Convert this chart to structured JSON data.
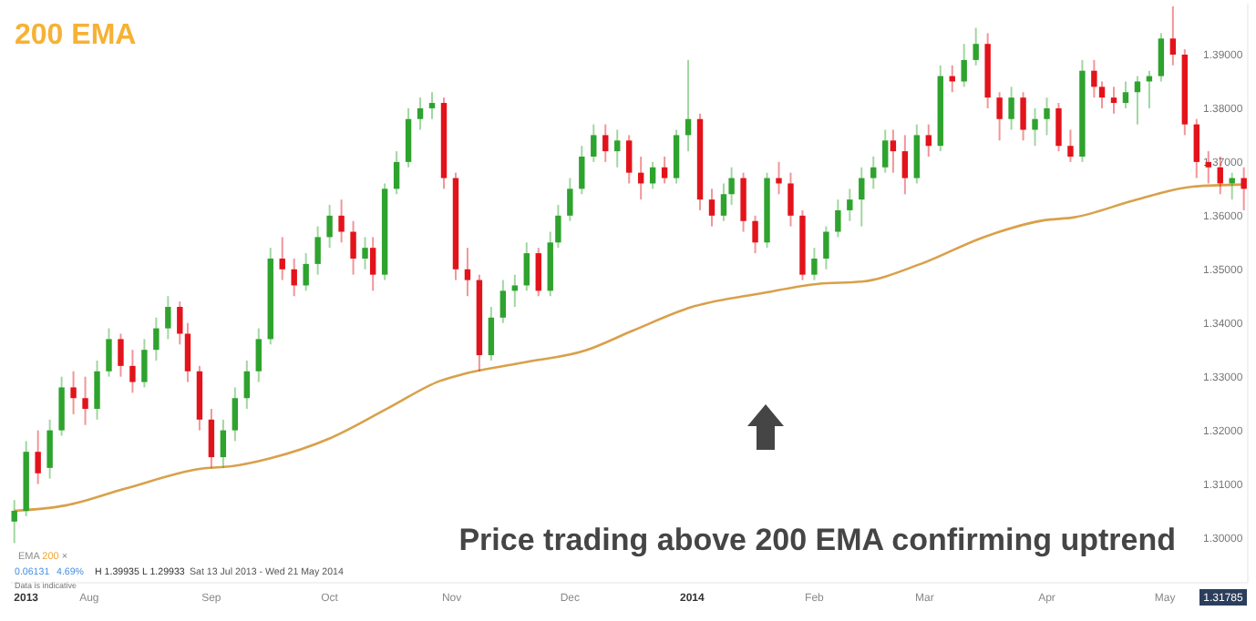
{
  "chart_data": {
    "type": "candlestick",
    "title": "200 EMA",
    "x": [
      "2013-07-13",
      "2013-07-16",
      "2013-07-19",
      "2013-07-22",
      "2013-07-25",
      "2013-07-28",
      "2013-07-31",
      "2013-08-03",
      "2013-08-06",
      "2013-08-09",
      "2013-08-12",
      "2013-08-15",
      "2013-08-18",
      "2013-08-21",
      "2013-08-24",
      "2013-08-26",
      "2013-08-29",
      "2013-09-01",
      "2013-09-04",
      "2013-09-07",
      "2013-09-10",
      "2013-09-13",
      "2013-09-16",
      "2013-09-19",
      "2013-09-22",
      "2013-09-25",
      "2013-09-28",
      "2013-10-01",
      "2013-10-04",
      "2013-10-07",
      "2013-10-10",
      "2013-10-12",
      "2013-10-15",
      "2013-10-18",
      "2013-10-21",
      "2013-10-24",
      "2013-10-27",
      "2013-10-30",
      "2013-11-02",
      "2013-11-05",
      "2013-11-08",
      "2013-11-11",
      "2013-11-14",
      "2013-11-17",
      "2013-11-20",
      "2013-11-23",
      "2013-11-26",
      "2013-11-28",
      "2013-12-01",
      "2013-12-04",
      "2013-12-07",
      "2013-12-10",
      "2013-12-13",
      "2013-12-16",
      "2013-12-19",
      "2013-12-22",
      "2013-12-25",
      "2013-12-28",
      "2013-12-31",
      "2014-01-03",
      "2014-01-06",
      "2014-01-09",
      "2014-01-11",
      "2014-01-14",
      "2014-01-17",
      "2014-01-20",
      "2014-01-23",
      "2014-01-26",
      "2014-01-29",
      "2014-02-01",
      "2014-02-04",
      "2014-02-07",
      "2014-02-10",
      "2014-02-13",
      "2014-02-16",
      "2014-02-19",
      "2014-02-21",
      "2014-02-24",
      "2014-02-27",
      "2014-03-02",
      "2014-03-05",
      "2014-03-08",
      "2014-03-11",
      "2014-03-14",
      "2014-03-17",
      "2014-03-20",
      "2014-03-23",
      "2014-03-26",
      "2014-03-29",
      "2014-04-01",
      "2014-04-04",
      "2014-04-07",
      "2014-04-10",
      "2014-04-13",
      "2014-04-15",
      "2014-04-18",
      "2014-04-21",
      "2014-04-24",
      "2014-04-27",
      "2014-04-30",
      "2014-05-03",
      "2014-05-06",
      "2014-05-09",
      "2014-05-12",
      "2014-05-15",
      "2014-05-18",
      "2014-05-21"
    ],
    "ohlc": [
      [
        1.303,
        1.307,
        1.299,
        1.305
      ],
      [
        1.305,
        1.318,
        1.304,
        1.316
      ],
      [
        1.316,
        1.32,
        1.31,
        1.312
      ],
      [
        1.313,
        1.322,
        1.311,
        1.32
      ],
      [
        1.32,
        1.33,
        1.319,
        1.328
      ],
      [
        1.328,
        1.331,
        1.323,
        1.326
      ],
      [
        1.326,
        1.33,
        1.321,
        1.324
      ],
      [
        1.324,
        1.333,
        1.322,
        1.331
      ],
      [
        1.331,
        1.339,
        1.33,
        1.337
      ],
      [
        1.337,
        1.338,
        1.33,
        1.332
      ],
      [
        1.332,
        1.335,
        1.327,
        1.329
      ],
      [
        1.329,
        1.337,
        1.328,
        1.335
      ],
      [
        1.335,
        1.341,
        1.333,
        1.339
      ],
      [
        1.339,
        1.345,
        1.337,
        1.343
      ],
      [
        1.343,
        1.344,
        1.336,
        1.338
      ],
      [
        1.338,
        1.34,
        1.329,
        1.331
      ],
      [
        1.331,
        1.332,
        1.32,
        1.322
      ],
      [
        1.322,
        1.324,
        1.313,
        1.315
      ],
      [
        1.315,
        1.322,
        1.313,
        1.32
      ],
      [
        1.32,
        1.328,
        1.318,
        1.326
      ],
      [
        1.326,
        1.333,
        1.324,
        1.331
      ],
      [
        1.331,
        1.339,
        1.329,
        1.337
      ],
      [
        1.337,
        1.354,
        1.336,
        1.352
      ],
      [
        1.352,
        1.356,
        1.348,
        1.35
      ],
      [
        1.35,
        1.352,
        1.345,
        1.347
      ],
      [
        1.347,
        1.353,
        1.346,
        1.351
      ],
      [
        1.351,
        1.358,
        1.349,
        1.356
      ],
      [
        1.356,
        1.362,
        1.354,
        1.36
      ],
      [
        1.36,
        1.363,
        1.355,
        1.357
      ],
      [
        1.357,
        1.359,
        1.349,
        1.352
      ],
      [
        1.352,
        1.356,
        1.35,
        1.354
      ],
      [
        1.354,
        1.356,
        1.346,
        1.349
      ],
      [
        1.349,
        1.366,
        1.348,
        1.365
      ],
      [
        1.365,
        1.372,
        1.364,
        1.37
      ],
      [
        1.37,
        1.38,
        1.369,
        1.378
      ],
      [
        1.378,
        1.382,
        1.376,
        1.38
      ],
      [
        1.38,
        1.383,
        1.378,
        1.381
      ],
      [
        1.381,
        1.382,
        1.365,
        1.367
      ],
      [
        1.367,
        1.368,
        1.348,
        1.35
      ],
      [
        1.35,
        1.354,
        1.345,
        1.348
      ],
      [
        1.348,
        1.349,
        1.331,
        1.334
      ],
      [
        1.334,
        1.343,
        1.333,
        1.341
      ],
      [
        1.341,
        1.348,
        1.34,
        1.346
      ],
      [
        1.346,
        1.349,
        1.343,
        1.347
      ],
      [
        1.347,
        1.355,
        1.346,
        1.353
      ],
      [
        1.353,
        1.354,
        1.345,
        1.346
      ],
      [
        1.346,
        1.357,
        1.345,
        1.355
      ],
      [
        1.355,
        1.362,
        1.354,
        1.36
      ],
      [
        1.36,
        1.367,
        1.359,
        1.365
      ],
      [
        1.365,
        1.373,
        1.364,
        1.371
      ],
      [
        1.371,
        1.377,
        1.37,
        1.375
      ],
      [
        1.375,
        1.377,
        1.37,
        1.372
      ],
      [
        1.372,
        1.376,
        1.369,
        1.374
      ],
      [
        1.374,
        1.375,
        1.366,
        1.368
      ],
      [
        1.368,
        1.371,
        1.363,
        1.366
      ],
      [
        1.366,
        1.37,
        1.365,
        1.369
      ],
      [
        1.369,
        1.371,
        1.366,
        1.367
      ],
      [
        1.367,
        1.376,
        1.366,
        1.375
      ],
      [
        1.375,
        1.389,
        1.372,
        1.378
      ],
      [
        1.378,
        1.379,
        1.361,
        1.363
      ],
      [
        1.363,
        1.365,
        1.358,
        1.36
      ],
      [
        1.36,
        1.366,
        1.359,
        1.364
      ],
      [
        1.364,
        1.369,
        1.362,
        1.367
      ],
      [
        1.367,
        1.368,
        1.357,
        1.359
      ],
      [
        1.359,
        1.36,
        1.353,
        1.355
      ],
      [
        1.355,
        1.368,
        1.354,
        1.367
      ],
      [
        1.367,
        1.37,
        1.364,
        1.366
      ],
      [
        1.366,
        1.368,
        1.358,
        1.36
      ],
      [
        1.36,
        1.361,
        1.348,
        1.349
      ],
      [
        1.349,
        1.354,
        1.348,
        1.352
      ],
      [
        1.352,
        1.358,
        1.35,
        1.357
      ],
      [
        1.357,
        1.363,
        1.356,
        1.361
      ],
      [
        1.361,
        1.365,
        1.359,
        1.363
      ],
      [
        1.363,
        1.369,
        1.358,
        1.367
      ],
      [
        1.367,
        1.371,
        1.365,
        1.369
      ],
      [
        1.369,
        1.376,
        1.368,
        1.374
      ],
      [
        1.374,
        1.376,
        1.368,
        1.372
      ],
      [
        1.372,
        1.375,
        1.364,
        1.367
      ],
      [
        1.367,
        1.377,
        1.366,
        1.375
      ],
      [
        1.375,
        1.377,
        1.371,
        1.373
      ],
      [
        1.373,
        1.388,
        1.372,
        1.386
      ],
      [
        1.386,
        1.388,
        1.383,
        1.385
      ],
      [
        1.385,
        1.392,
        1.384,
        1.389
      ],
      [
        1.389,
        1.395,
        1.388,
        1.392
      ],
      [
        1.392,
        1.394,
        1.38,
        1.382
      ],
      [
        1.382,
        1.383,
        1.374,
        1.378
      ],
      [
        1.378,
        1.384,
        1.376,
        1.382
      ],
      [
        1.382,
        1.383,
        1.374,
        1.376
      ],
      [
        1.376,
        1.38,
        1.373,
        1.378
      ],
      [
        1.378,
        1.382,
        1.375,
        1.38
      ],
      [
        1.38,
        1.381,
        1.372,
        1.373
      ],
      [
        1.373,
        1.376,
        1.37,
        1.371
      ],
      [
        1.371,
        1.389,
        1.37,
        1.387
      ],
      [
        1.387,
        1.389,
        1.382,
        1.384
      ],
      [
        1.384,
        1.385,
        1.38,
        1.382
      ],
      [
        1.382,
        1.384,
        1.379,
        1.381
      ],
      [
        1.381,
        1.385,
        1.38,
        1.383
      ],
      [
        1.383,
        1.386,
        1.377,
        1.385
      ],
      [
        1.385,
        1.387,
        1.38,
        1.386
      ],
      [
        1.386,
        1.394,
        1.385,
        1.393
      ],
      [
        1.393,
        1.399,
        1.388,
        1.39
      ],
      [
        1.39,
        1.391,
        1.375,
        1.377
      ],
      [
        1.377,
        1.378,
        1.367,
        1.37
      ],
      [
        1.37,
        1.372,
        1.366,
        1.369
      ],
      [
        1.369,
        1.371,
        1.364,
        1.366
      ],
      [
        1.366,
        1.368,
        1.363,
        1.367
      ],
      [
        1.367,
        1.369,
        1.361,
        1.365
      ]
    ],
    "series": [
      {
        "type": "line",
        "color": "#d9a04a",
        "x": [
          "2013-07-13",
          "2013-07-26",
          "2013-08-10",
          "2013-08-29",
          "2013-09-07",
          "2013-09-16",
          "2013-10-01",
          "2013-10-16",
          "2013-10-29",
          "2013-11-04",
          "2013-11-19",
          "2013-12-05",
          "2013-12-17",
          "2014-01-01",
          "2014-01-19",
          "2014-02-02",
          "2014-02-13",
          "2014-02-28",
          "2014-03-16",
          "2014-03-31",
          "2014-04-08",
          "2014-04-23",
          "2014-05-08",
          "2014-05-21"
        ],
        "values": [
          1.305,
          1.306,
          1.3091,
          1.3128,
          1.3134,
          1.3148,
          1.3185,
          1.3242,
          1.3292,
          1.3305,
          1.3326,
          1.3349,
          1.3386,
          1.343,
          1.3456,
          1.3473,
          1.3477,
          1.351,
          1.356,
          1.3591,
          1.3597,
          1.3628,
          1.3654,
          1.3658
        ]
      }
    ],
    "xlim": [
      "2013-07-12",
      "2014-05-22"
    ],
    "xticks": [
      {
        "value": "2013-07-16",
        "label": "2013"
      },
      {
        "value": "2013-08-01",
        "label": "Aug"
      },
      {
        "value": "2013-09-01",
        "label": "Sep"
      },
      {
        "value": "2013-10-01",
        "label": "Oct"
      },
      {
        "value": "2013-11-01",
        "label": "Nov"
      },
      {
        "value": "2013-12-01",
        "label": "Dec"
      },
      {
        "value": "2014-01-01",
        "label": "2014"
      },
      {
        "value": "2014-02-01",
        "label": "Feb"
      },
      {
        "value": "2014-03-01",
        "label": "Mar"
      },
      {
        "value": "2014-04-01",
        "label": "Apr"
      },
      {
        "value": "2014-05-01",
        "label": "May"
      }
    ],
    "ylim": [
      1.2916,
      1.3995
    ],
    "yticks": [
      {
        "value": 1.3,
        "label": "1.30000"
      },
      {
        "value": 1.31,
        "label": "1.31000"
      },
      {
        "value": 1.32,
        "label": "1.32000"
      },
      {
        "value": 1.33,
        "label": "1.33000"
      },
      {
        "value": 1.34,
        "label": "1.34000"
      },
      {
        "value": 1.35,
        "label": "1.35000"
      },
      {
        "value": 1.36,
        "label": "1.36000"
      },
      {
        "value": 1.37,
        "label": "1.37000"
      },
      {
        "value": 1.38,
        "label": "1.38000"
      },
      {
        "value": 1.39,
        "label": "1.39000"
      }
    ],
    "annotations": [
      "Price trading above 200 EMA confirming uptrend",
      "EMA 200 ×",
      "0.06131",
      "4.69%",
      "H 1.39935",
      "L 1.29933",
      "Sat 13 Jul 2013 - Wed 21 May 2014",
      "Data is indicative",
      "1.31785"
    ]
  }
}
